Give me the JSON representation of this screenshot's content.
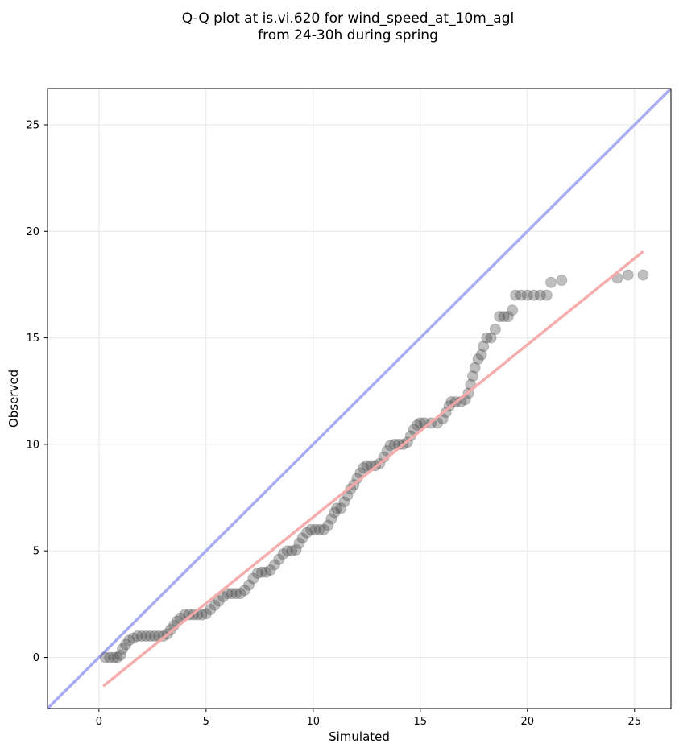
{
  "chart_data": {
    "type": "scatter",
    "title_lines": [
      "Q-Q plot at is.vi.620 for wind_speed_at_10m_agl",
      "from 24-30h during spring"
    ],
    "xlabel": "Simulated",
    "ylabel": "Observed",
    "xlim": [
      -2.4,
      26.7
    ],
    "ylim": [
      -2.4,
      26.7
    ],
    "x_ticks": [
      0,
      5,
      10,
      15,
      20,
      25
    ],
    "y_ticks": [
      0,
      5,
      10,
      15,
      20,
      25
    ],
    "grid": true,
    "legend": "none",
    "colors": {
      "points": "#444444",
      "identity_line": "#a8acf2",
      "fit_line": "#f5a9a9"
    },
    "identity_line": {
      "x": [
        -2.4,
        26.7
      ],
      "y": [
        -2.4,
        26.7
      ]
    },
    "fit_line": {
      "x": [
        0.2,
        25.4
      ],
      "y": [
        -1.35,
        19.05
      ]
    },
    "points": [
      [
        0.3,
        0.0
      ],
      [
        0.5,
        0.0
      ],
      [
        0.7,
        0.0
      ],
      [
        0.85,
        0.0
      ],
      [
        1.0,
        0.1
      ],
      [
        1.1,
        0.4
      ],
      [
        1.25,
        0.6
      ],
      [
        1.4,
        0.8
      ],
      [
        1.6,
        0.9
      ],
      [
        1.8,
        1.0
      ],
      [
        2.0,
        1.0
      ],
      [
        2.2,
        1.0
      ],
      [
        2.4,
        1.0
      ],
      [
        2.6,
        1.0
      ],
      [
        2.8,
        1.0
      ],
      [
        3.0,
        1.0
      ],
      [
        3.2,
        1.1
      ],
      [
        3.35,
        1.3
      ],
      [
        3.5,
        1.5
      ],
      [
        3.65,
        1.7
      ],
      [
        3.8,
        1.85
      ],
      [
        4.0,
        2.0
      ],
      [
        4.2,
        2.0
      ],
      [
        4.4,
        2.0
      ],
      [
        4.6,
        2.0
      ],
      [
        4.8,
        2.0
      ],
      [
        5.0,
        2.05
      ],
      [
        5.2,
        2.25
      ],
      [
        5.4,
        2.45
      ],
      [
        5.6,
        2.65
      ],
      [
        5.8,
        2.85
      ],
      [
        6.0,
        3.0
      ],
      [
        6.2,
        3.0
      ],
      [
        6.4,
        3.0
      ],
      [
        6.6,
        3.0
      ],
      [
        6.8,
        3.15
      ],
      [
        7.0,
        3.4
      ],
      [
        7.2,
        3.7
      ],
      [
        7.4,
        3.95
      ],
      [
        7.6,
        4.0
      ],
      [
        7.8,
        4.0
      ],
      [
        8.0,
        4.1
      ],
      [
        8.2,
        4.35
      ],
      [
        8.4,
        4.6
      ],
      [
        8.6,
        4.85
      ],
      [
        8.8,
        5.0
      ],
      [
        9.0,
        5.0
      ],
      [
        9.2,
        5.05
      ],
      [
        9.35,
        5.35
      ],
      [
        9.5,
        5.6
      ],
      [
        9.7,
        5.85
      ],
      [
        9.9,
        6.0
      ],
      [
        10.1,
        6.0
      ],
      [
        10.3,
        6.0
      ],
      [
        10.5,
        6.0
      ],
      [
        10.7,
        6.2
      ],
      [
        10.85,
        6.5
      ],
      [
        11.0,
        6.8
      ],
      [
        11.1,
        7.0
      ],
      [
        11.3,
        7.0
      ],
      [
        11.45,
        7.3
      ],
      [
        11.6,
        7.6
      ],
      [
        11.75,
        7.9
      ],
      [
        11.9,
        8.1
      ],
      [
        12.05,
        8.4
      ],
      [
        12.2,
        8.65
      ],
      [
        12.35,
        8.9
      ],
      [
        12.5,
        9.0
      ],
      [
        12.7,
        9.0
      ],
      [
        12.9,
        9.0
      ],
      [
        13.1,
        9.1
      ],
      [
        13.3,
        9.4
      ],
      [
        13.45,
        9.7
      ],
      [
        13.6,
        9.95
      ],
      [
        13.8,
        10.0
      ],
      [
        14.0,
        10.0
      ],
      [
        14.2,
        10.0
      ],
      [
        14.4,
        10.1
      ],
      [
        14.55,
        10.4
      ],
      [
        14.7,
        10.7
      ],
      [
        14.85,
        10.9
      ],
      [
        15.0,
        11.0
      ],
      [
        15.2,
        11.0
      ],
      [
        15.5,
        11.0
      ],
      [
        15.8,
        11.0
      ],
      [
        16.05,
        11.2
      ],
      [
        16.2,
        11.5
      ],
      [
        16.35,
        11.8
      ],
      [
        16.45,
        12.0
      ],
      [
        16.65,
        12.0
      ],
      [
        16.9,
        12.0
      ],
      [
        17.1,
        12.1
      ],
      [
        17.25,
        12.4
      ],
      [
        17.35,
        12.8
      ],
      [
        17.45,
        13.2
      ],
      [
        17.55,
        13.6
      ],
      [
        17.7,
        14.0
      ],
      [
        17.85,
        14.2
      ],
      [
        17.95,
        14.6
      ],
      [
        18.1,
        15.0
      ],
      [
        18.3,
        15.0
      ],
      [
        18.5,
        15.4
      ],
      [
        18.7,
        16.0
      ],
      [
        18.9,
        16.0
      ],
      [
        19.1,
        16.0
      ],
      [
        19.3,
        16.3
      ],
      [
        19.45,
        17.0
      ],
      [
        19.7,
        17.0
      ],
      [
        20.0,
        17.0
      ],
      [
        20.3,
        17.0
      ],
      [
        20.6,
        17.0
      ],
      [
        20.9,
        17.0
      ],
      [
        21.1,
        17.6
      ],
      [
        21.6,
        17.7
      ],
      [
        24.2,
        17.8
      ],
      [
        24.7,
        17.95
      ],
      [
        25.4,
        17.95
      ]
    ]
  }
}
